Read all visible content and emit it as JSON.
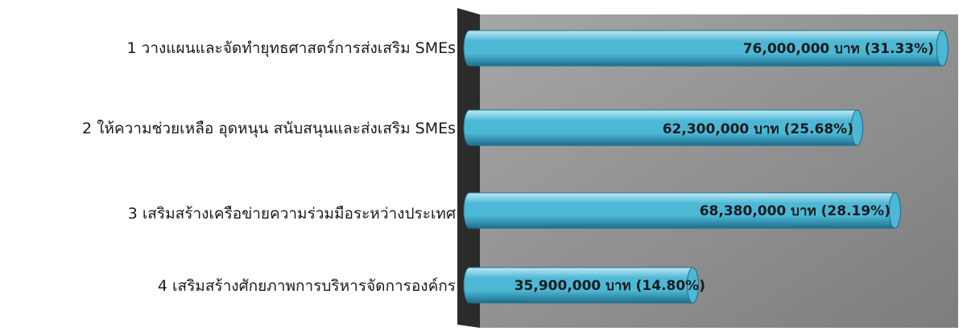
{
  "chart_data": {
    "type": "bar",
    "orientation": "horizontal",
    "style": "3d-cylinder",
    "categories": [
      "1 วางแผนและจัดทำยุทธศาสตร์การส่งเสริม SMEs",
      "2 ให้ความช่วยเหลือ อุดหนุน สนับสนุนและส่งเสริม SMEs",
      "3 เสริมสร้างเครือข่ายความร่วมมือระหว่างประเทศ",
      "4 เสริมสร้างศักยภาพการบริหารจัดการองค์กร"
    ],
    "values": [
      76000000,
      62300000,
      68380000,
      35900000
    ],
    "data_labels": [
      "76,000,000 บาท (31.33%)",
      "62,300,000 บาท (25.68%)",
      "68,380,000 บาท (28.19%)",
      "35,900,000 บาท (14.80%)"
    ],
    "xlim": [
      0,
      77000000
    ],
    "grid": false,
    "legend": "none",
    "colors": {
      "bar": "#4db8d6",
      "bar_light": "#bfe9f5",
      "bar_dark": "#1d6f8c",
      "back_wall": "#8f8f8f",
      "side_wall": "#2b2b2b"
    }
  }
}
